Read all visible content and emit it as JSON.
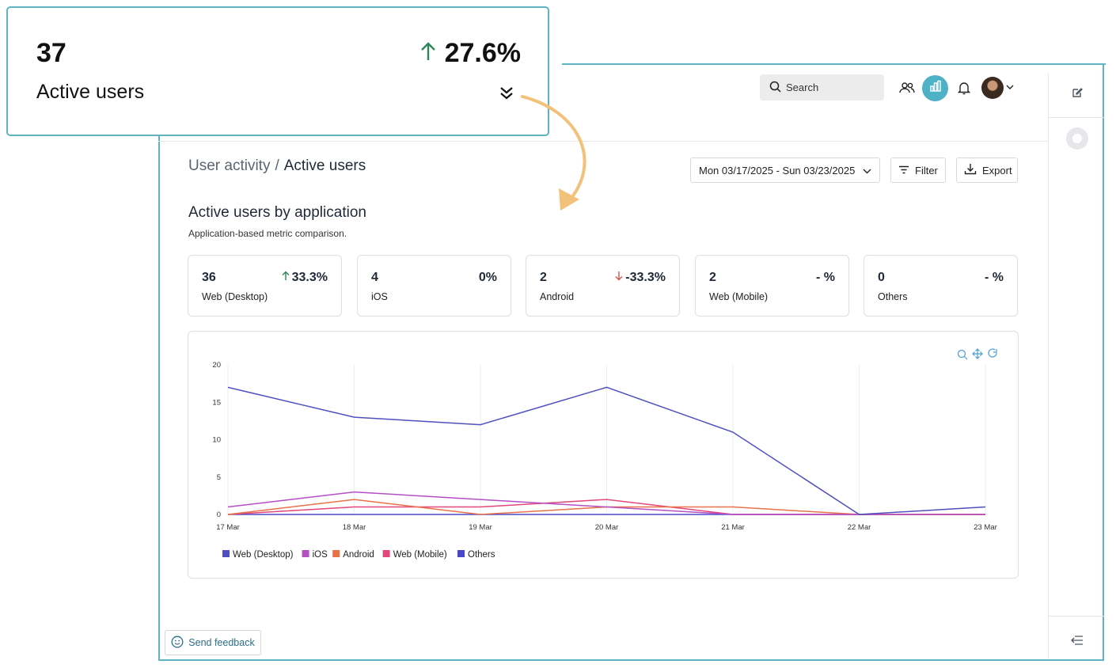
{
  "header": {
    "search_label": "Search",
    "colors": {
      "accent": "#4fb1c6",
      "frame": "#5fb3c2"
    }
  },
  "breadcrumb": {
    "parent": "User activity",
    "separator": "/",
    "current": "Active users"
  },
  "toolbar": {
    "date_range": "Mon 03/17/2025 - Sun 03/23/2025",
    "filter_label": "Filter",
    "export_label": "Export"
  },
  "section": {
    "title": "Active users by application",
    "subtitle": "Application-based metric comparison."
  },
  "metrics": [
    {
      "value": "36",
      "change": "33.3%",
      "direction": "up",
      "label": "Web (Desktop)"
    },
    {
      "value": "4",
      "change": "0%",
      "direction": "none",
      "label": "iOS"
    },
    {
      "value": "2",
      "change": "-33.3%",
      "direction": "down",
      "label": "Android"
    },
    {
      "value": "2",
      "change": "- %",
      "direction": "none",
      "label": "Web (Mobile)"
    },
    {
      "value": "0",
      "change": "- %",
      "direction": "none",
      "label": "Others"
    }
  ],
  "callout": {
    "value": "37",
    "change": "27.6%",
    "direction": "up",
    "label": "Active users"
  },
  "feedback_label": "Send feedback",
  "chart_data": {
    "type": "line",
    "categories": [
      "17 Mar",
      "18 Mar",
      "19 Mar",
      "20 Mar",
      "21 Mar",
      "22 Mar",
      "23 Mar"
    ],
    "ylim": [
      0,
      20
    ],
    "yticks": [
      "0",
      "5",
      "10",
      "15",
      "20"
    ],
    "series": [
      {
        "name": "Web (Desktop)",
        "color": "#4f4fc0",
        "values": [
          17,
          13,
          12,
          17,
          11,
          0,
          1
        ]
      },
      {
        "name": "iOS",
        "color": "#b44fc4",
        "values": [
          1,
          3,
          2,
          1,
          0,
          0,
          0
        ]
      },
      {
        "name": "Android",
        "color": "#e8714a",
        "values": [
          0,
          2,
          0,
          1,
          1,
          0,
          0
        ]
      },
      {
        "name": "Web (Mobile)",
        "color": "#e2467a",
        "values": [
          0,
          1,
          1,
          2,
          0,
          0,
          0
        ]
      },
      {
        "name": "Others",
        "color": "#4848c8",
        "values": [
          0,
          0,
          0,
          0,
          0,
          0,
          0
        ]
      }
    ]
  }
}
